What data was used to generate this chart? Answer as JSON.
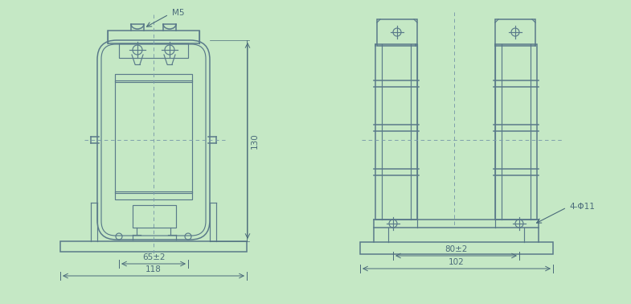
{
  "bg_color": "#c5e8c5",
  "line_color": "#5a7a8a",
  "dash_color": "#7a9aaa",
  "dim_color": "#4a6a7a",
  "fig_width": 7.85,
  "fig_height": 3.78,
  "annotations": {
    "M5": "M5",
    "130": "130",
    "65pm2": "65±2",
    "118": "118",
    "80pm2": "80±2",
    "102": "102",
    "4phi11": "4-Φ11"
  }
}
